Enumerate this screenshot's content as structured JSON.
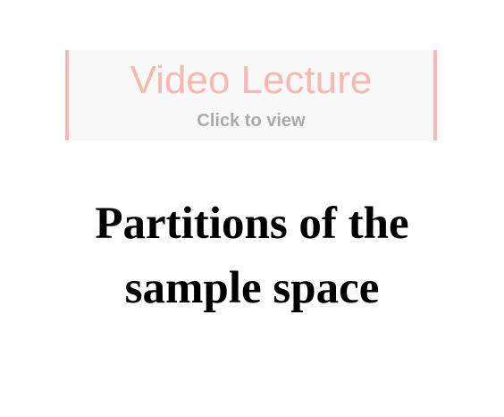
{
  "video_link": {
    "title": "Video Lecture",
    "subtitle": "Click to view"
  },
  "heading": {
    "line1": "Partitions of the",
    "line2": "sample space"
  },
  "colors": {
    "accent": "#f5b9b1",
    "subtitle": "#a9a9a9",
    "button_bg": "#f8f8f8",
    "heading": "#000000"
  }
}
